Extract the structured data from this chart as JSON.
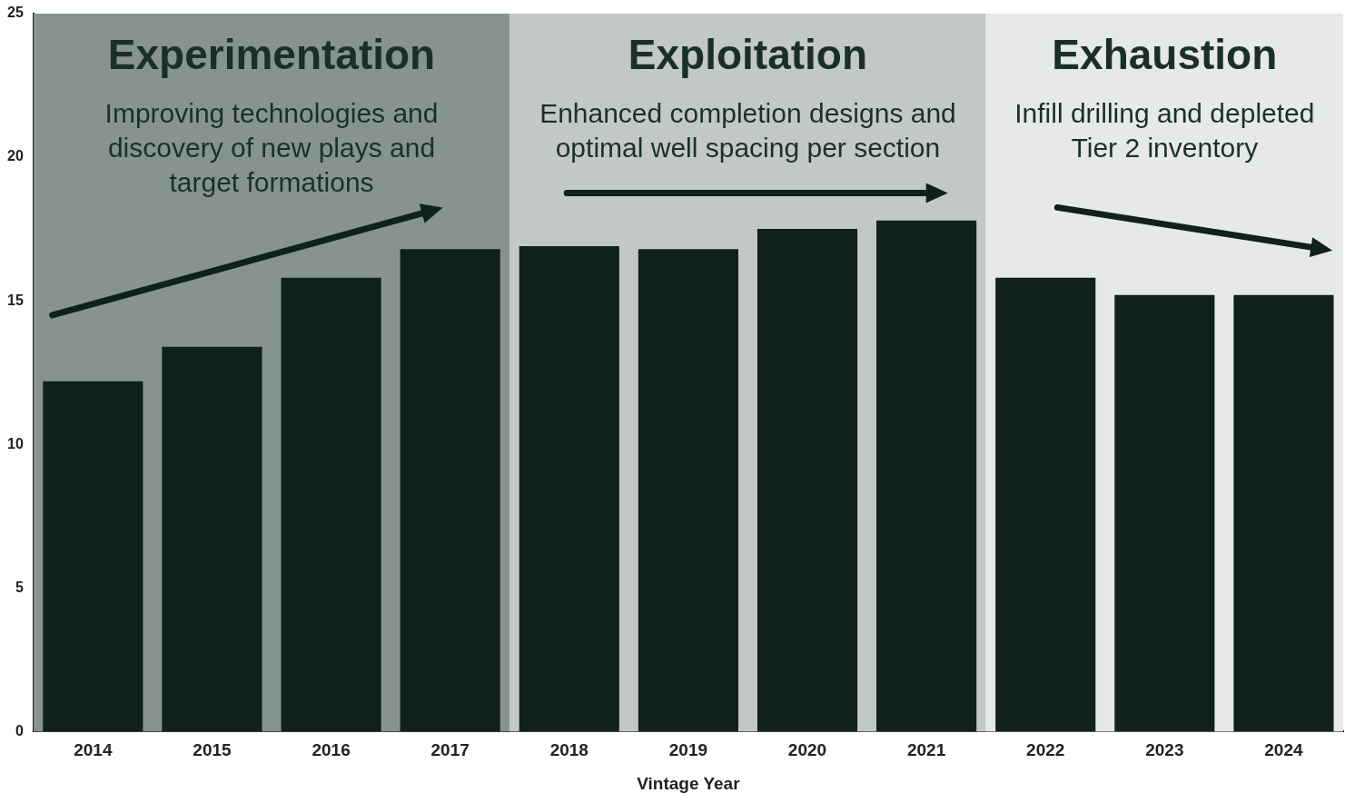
{
  "chart_data": {
    "type": "bar",
    "xlabel": "Vintage Year",
    "categories": [
      "2014",
      "2015",
      "2016",
      "2017",
      "2018",
      "2019",
      "2020",
      "2021",
      "2022",
      "2023",
      "2024"
    ],
    "values": [
      12.2,
      13.4,
      15.8,
      16.8,
      16.9,
      16.8,
      17.5,
      17.8,
      15.8,
      15.2,
      15.2
    ],
    "color": "#0f2119",
    "ylim": [
      0,
      25
    ],
    "yticks": [
      0,
      5,
      10,
      15,
      20,
      25
    ],
    "grid": false,
    "legend": false,
    "bands": [
      {
        "axis": "x",
        "from": "2014",
        "to": "2017",
        "label": "Experimentation",
        "color": "#87948d"
      },
      {
        "axis": "x",
        "from": "2018",
        "to": "2021",
        "label": "Exploitation",
        "color": "#c2c9c5"
      },
      {
        "axis": "x",
        "from": "2022",
        "to": "2024",
        "label": "Exhaustion",
        "color": "#e6e9e7"
      }
    ],
    "annotations": [
      "Improving technologies and\ndiscovery of new plays and\ntarget formations",
      "Enhanced completion designs and\noptimal well spacing per section",
      "Infill drilling and depleted\nTier 2 inventory"
    ]
  }
}
